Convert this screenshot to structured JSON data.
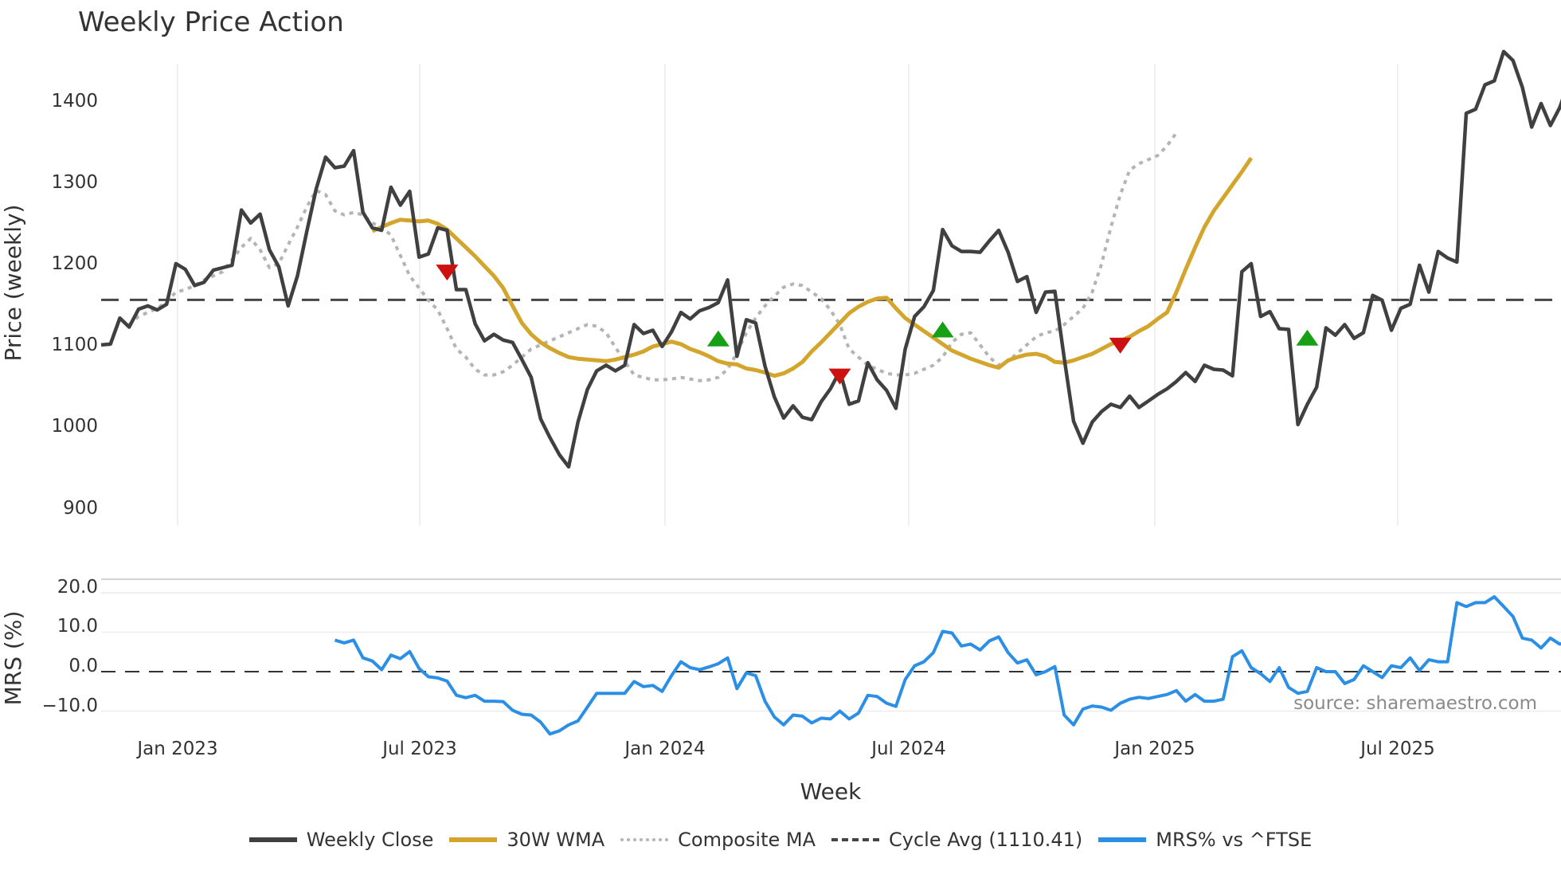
{
  "title": "Weekly Price Action",
  "source": "source: sharemaestro.com",
  "colors": {
    "close": "#404040",
    "wma": "#d4a52c",
    "composite": "#b4b4b4",
    "cycle": "#454545",
    "mrs": "#2b8fe6",
    "buy": "#16a016",
    "sell": "#cc1111",
    "grid": "#ececec"
  },
  "chart_data": [
    {
      "type": "line",
      "title": "Weekly Price Action",
      "xlabel": "Week",
      "ylabel": "Price (weekly)",
      "ylim": [
        872,
        1450
      ],
      "yticks": [
        900,
        1000,
        1100,
        1200,
        1300,
        1400
      ],
      "xticks": [
        "Jan 2023",
        "Jul 2023",
        "Jan 2024",
        "Jul 2024",
        "Jan 2025",
        "Jul 2025"
      ],
      "grid": "vertical",
      "legend_position": "bottom",
      "series": [
        {
          "name": "Weekly Close",
          "x_week_index_start": 0,
          "values": [
            1055,
            1056,
            1088,
            1077,
            1099,
            1103,
            1098,
            1105,
            1155,
            1148,
            1128,
            1132,
            1147,
            1150,
            1153,
            1221,
            1205,
            1216,
            1172,
            1151,
            1103,
            1140,
            1195,
            1247,
            1286,
            1273,
            1275,
            1294,
            1218,
            1199,
            1196,
            1249,
            1227,
            1244,
            1163,
            1167,
            1199,
            1196,
            1123,
            1123,
            1081,
            1060,
            1068,
            1061,
            1058,
            1037,
            1015,
            964,
            941,
            920,
            905,
            960,
            1000,
            1023,
            1030,
            1023,
            1030,
            1080,
            1069,
            1073,
            1053,
            1071,
            1095,
            1087,
            1097,
            1101,
            1107,
            1135,
            1041,
            1086,
            1082,
            1029,
            991,
            965,
            980,
            966,
            963,
            985,
            1001,
            1023,
            982,
            986,
            1033,
            1012,
            999,
            977,
            1050,
            1090,
            1102,
            1122,
            1197,
            1177,
            1170,
            1170,
            1169,
            1183,
            1196,
            1169,
            1133,
            1139,
            1095,
            1120,
            1121,
            1039,
            961,
            934,
            960,
            973,
            982,
            978,
            992,
            978,
            986,
            994,
            1001,
            1010,
            1021,
            1010,
            1030,
            1025,
            1024,
            1017,
            1145,
            1155,
            1090,
            1096,
            1075,
            1074,
            957,
            982,
            1003,
            1076,
            1067,
            1080,
            1063,
            1070,
            1116,
            1110,
            1073,
            1100,
            1105,
            1153,
            1120,
            1170,
            1162,
            1157,
            1340,
            1345,
            1375,
            1380,
            1416,
            1405,
            1372,
            1323,
            1352,
            1325,
            1347,
            1380,
            1404
          ]
        },
        {
          "name": "30W WMA",
          "x_week_index_start": 29,
          "values": [
            1195,
            1200,
            1205,
            1209,
            1208,
            1207,
            1208,
            1204,
            1197,
            1186,
            1175,
            1164,
            1152,
            1140,
            1125,
            1103,
            1082,
            1068,
            1058,
            1051,
            1045,
            1040,
            1038,
            1037,
            1036,
            1035,
            1037,
            1040,
            1043,
            1047,
            1053,
            1056,
            1059,
            1056,
            1050,
            1046,
            1041,
            1035,
            1032,
            1031,
            1026,
            1024,
            1021,
            1017,
            1020,
            1026,
            1034,
            1047,
            1058,
            1070,
            1082,
            1094,
            1102,
            1108,
            1112,
            1113,
            1100,
            1088,
            1080,
            1072,
            1064,
            1056,
            1048,
            1043,
            1038,
            1034,
            1030,
            1027,
            1036,
            1040,
            1043,
            1044,
            1041,
            1034,
            1033,
            1036,
            1040,
            1044,
            1050,
            1056,
            1060,
            1065,
            1072,
            1078,
            1087,
            1095,
            1120,
            1148,
            1175,
            1200,
            1220,
            1236,
            1252,
            1268,
            1285
          ]
        },
        {
          "name": "Composite MA",
          "x_week_index_start": 3,
          "values": [
            1080,
            1090,
            1095,
            1100,
            1108,
            1120,
            1123,
            1128,
            1135,
            1140,
            1145,
            1160,
            1175,
            1186,
            1172,
            1150,
            1155,
            1178,
            1200,
            1225,
            1245,
            1240,
            1220,
            1215,
            1218,
            1215,
            1205,
            1200,
            1190,
            1165,
            1140,
            1125,
            1110,
            1098,
            1075,
            1050,
            1040,
            1025,
            1018,
            1018,
            1022,
            1030,
            1040,
            1050,
            1055,
            1060,
            1065,
            1070,
            1075,
            1080,
            1078,
            1070,
            1052,
            1035,
            1018,
            1015,
            1012,
            1012,
            1013,
            1015,
            1013,
            1011,
            1012,
            1015,
            1025,
            1045,
            1070,
            1088,
            1103,
            1115,
            1126,
            1130,
            1128,
            1120,
            1112,
            1098,
            1080,
            1050,
            1040,
            1030,
            1025,
            1020,
            1018,
            1018,
            1020,
            1025,
            1030,
            1040,
            1058,
            1068,
            1070,
            1055,
            1040,
            1030,
            1035,
            1045,
            1055,
            1065,
            1070,
            1072,
            1080,
            1090,
            1100,
            1120,
            1155,
            1200,
            1240,
            1270,
            1278,
            1283,
            1288,
            1300,
            1316
          ]
        },
        {
          "name": "Cycle Avg (1110.41)",
          "constant": 1110.41
        }
      ],
      "signals": [
        {
          "type": "sell",
          "x_week_index": 37,
          "price": 1145
        },
        {
          "type": "buy",
          "x_week_index": 66,
          "price": 1062
        },
        {
          "type": "sell",
          "x_week_index": 79,
          "price": 1017
        },
        {
          "type": "buy",
          "x_week_index": 90,
          "price": 1073
        },
        {
          "type": "sell",
          "x_week_index": 109,
          "price": 1055
        },
        {
          "type": "buy",
          "x_week_index": 129,
          "price": 1063
        }
      ]
    },
    {
      "type": "line",
      "ylabel": "MRS (%)",
      "ylim": [
        -17,
        22
      ],
      "yticks": [
        -10.0,
        0.0,
        10.0,
        20.0
      ],
      "reference_line": 0.0,
      "series": [
        {
          "name": "MRS% vs ^FTSE",
          "x_week_index_start": 25,
          "values": [
            8.0,
            7.3,
            8.0,
            3.5,
            2.7,
            0.5,
            4.2,
            3.3,
            5.1,
            0.8,
            -1.3,
            -1.6,
            -2.4,
            -6.0,
            -6.6,
            -6.0,
            -7.5,
            -7.5,
            -7.6,
            -9.8,
            -10.8,
            -11.0,
            -12.8,
            -15.8,
            -15.0,
            -13.5,
            -12.5,
            -9.0,
            -5.5,
            -5.5,
            -5.5,
            -5.5,
            -2.5,
            -3.8,
            -3.5,
            -5.0,
            -1.0,
            2.5,
            1.0,
            0.5,
            1.2,
            2.0,
            3.5,
            -4.3,
            -0.3,
            -1.0,
            -7.5,
            -11.5,
            -13.5,
            -11.0,
            -11.3,
            -13.0,
            -11.8,
            -12.0,
            -10.0,
            -12.0,
            -10.5,
            -6.0,
            -6.3,
            -8.0,
            -8.8,
            -2.0,
            1.5,
            2.5,
            4.8,
            10.2,
            9.8,
            6.5,
            7.0,
            5.5,
            7.8,
            8.8,
            4.8,
            2.2,
            3.0,
            -0.8,
            0.0,
            1.3,
            -11.0,
            -13.5,
            -9.5,
            -8.7,
            -9.0,
            -9.8,
            -8.0,
            -7.0,
            -6.5,
            -6.8,
            -6.3,
            -5.8,
            -4.8,
            -7.5,
            -5.8,
            -7.5,
            -7.5,
            -7.0,
            3.8,
            5.3,
            1.0,
            -0.5,
            -2.5,
            1.0,
            -4.0,
            -5.5,
            -5.0,
            1.0,
            0.0,
            0.0,
            -3.0,
            -2.0,
            1.5,
            0.0,
            -1.5,
            1.5,
            1.0,
            3.5,
            0.3,
            3.0,
            2.5,
            2.5,
            17.5,
            16.5,
            17.5,
            17.5,
            19.0,
            16.5,
            14.0,
            8.5,
            8.0,
            6.0,
            8.5,
            7.0,
            7.5
          ]
        }
      ]
    }
  ],
  "axes": {
    "price_ylabel": "Price (weekly)",
    "mrs_ylabel": "MRS (%)",
    "xlabel": "Week",
    "price_ticks": [
      "1400",
      "1300",
      "1200",
      "1100",
      "1000",
      "900"
    ],
    "mrs_ticks": [
      "20.0",
      "10.0",
      "0.0",
      "−10.0"
    ],
    "x_ticks": [
      "Jan 2023",
      "Jul 2023",
      "Jan 2024",
      "Jul 2024",
      "Jan 2025",
      "Jul 2025"
    ]
  },
  "legend": [
    {
      "label": "Weekly Close",
      "style": "solid",
      "color": "#404040"
    },
    {
      "label": "30W WMA",
      "style": "solid",
      "color": "#d4a52c"
    },
    {
      "label": "Composite MA",
      "style": "dotted",
      "color": "#b4b4b4"
    },
    {
      "label": "Cycle Avg (1110.41)",
      "style": "dashed",
      "color": "#454545"
    },
    {
      "label": "MRS% vs ^FTSE",
      "style": "solid",
      "color": "#2b8fe6"
    }
  ]
}
